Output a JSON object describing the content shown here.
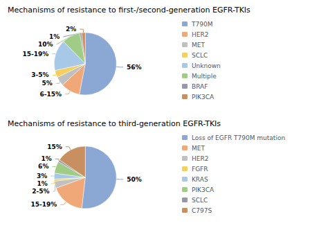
{
  "chart_data": [
    {
      "type": "pie",
      "title": "Mechanisms of resistance to first-/second-generation EGFR-TKIs",
      "categories": [
        "T790M",
        "HER2",
        "MET",
        "SCLC",
        "Unknown",
        "Multiple",
        "BRAF",
        "PIK3CA"
      ],
      "values": [
        56,
        10.5,
        5,
        4,
        17,
        10,
        1,
        2
      ],
      "value_labels": [
        "56%",
        "6-15%",
        "5%",
        "3-5%",
        "15-19%",
        "10%",
        "1%",
        "2%"
      ],
      "colors": [
        "#8BA7D3",
        "#F0A878",
        "#C0C0C0",
        "#F5D060",
        "#A8C8E8",
        "#A0CC88",
        "#9898A8",
        "#C89060"
      ],
      "data_labels": true,
      "legend": "right"
    },
    {
      "type": "pie",
      "title": "Mechanisms of resistance to third-generation EGFR-TKIs",
      "categories": [
        "Loss of EGFR T790M mutation",
        "MET",
        "HER2",
        "FGFR",
        "KRAS",
        "PIK3CA",
        "SCLC",
        "C797S"
      ],
      "values": [
        50,
        17,
        3.5,
        1,
        3,
        6,
        1,
        15
      ],
      "value_labels": [
        "50%",
        "15-19%",
        "2-5%",
        "1%",
        "3%",
        "6%",
        "1%",
        "15%"
      ],
      "colors": [
        "#8BA7D3",
        "#F0A878",
        "#C0C0C0",
        "#F5D060",
        "#A8C8E8",
        "#A0CC88",
        "#9898A8",
        "#C89060"
      ],
      "data_labels": true,
      "legend": "right"
    }
  ]
}
